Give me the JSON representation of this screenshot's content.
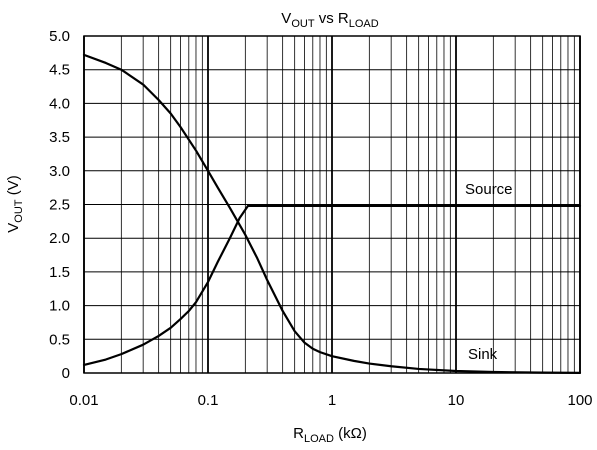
{
  "chart_data": {
    "type": "line",
    "title": {
      "main": "V",
      "main_sub": "OUT",
      "mid": " vs R",
      "mid_sub": "LOAD"
    },
    "xlabel": {
      "main": "R",
      "sub": "LOAD",
      "unit": " (kΩ)"
    },
    "ylabel": {
      "main": "V",
      "sub": "OUT",
      "unit": " (V)"
    },
    "x_scale": "log",
    "xlim": [
      0.01,
      100
    ],
    "ylim": [
      0,
      5
    ],
    "x_ticks": [
      {
        "value": 0.01,
        "label": "0.01"
      },
      {
        "value": 0.1,
        "label": "0.1"
      },
      {
        "value": 1,
        "label": "1"
      },
      {
        "value": 10,
        "label": "10"
      },
      {
        "value": 100,
        "label": "100"
      }
    ],
    "y_ticks": [
      {
        "value": 0,
        "label": "0"
      },
      {
        "value": 0.5,
        "label": "0.5"
      },
      {
        "value": 1.0,
        "label": "1.0"
      },
      {
        "value": 1.5,
        "label": "1.5"
      },
      {
        "value": 2.0,
        "label": "2.0"
      },
      {
        "value": 2.5,
        "label": "2.5"
      },
      {
        "value": 3.0,
        "label": "3.0"
      },
      {
        "value": 3.5,
        "label": "3.5"
      },
      {
        "value": 4.0,
        "label": "4.0"
      },
      {
        "value": 4.5,
        "label": "4.5"
      },
      {
        "value": 5.0,
        "label": "5.0"
      }
    ],
    "grid": true,
    "series": [
      {
        "name": "Source",
        "x": [
          0.01,
          0.015,
          0.02,
          0.03,
          0.04,
          0.05,
          0.06,
          0.07,
          0.08,
          0.1,
          0.12,
          0.15,
          0.18,
          0.21,
          0.22,
          0.3,
          0.5,
          1,
          2,
          5,
          10,
          20,
          50,
          100
        ],
        "y": [
          0.12,
          0.2,
          0.28,
          0.42,
          0.55,
          0.67,
          0.8,
          0.92,
          1.05,
          1.35,
          1.65,
          2.0,
          2.3,
          2.48,
          2.48,
          2.48,
          2.48,
          2.48,
          2.48,
          2.48,
          2.48,
          2.48,
          2.48,
          2.48
        ]
      },
      {
        "name": "Sink",
        "x": [
          0.01,
          0.015,
          0.02,
          0.03,
          0.04,
          0.05,
          0.06,
          0.08,
          0.1,
          0.12,
          0.15,
          0.2,
          0.25,
          0.3,
          0.4,
          0.5,
          0.6,
          0.7,
          0.8,
          1,
          1.5,
          2,
          3,
          5,
          10,
          20,
          50,
          100
        ],
        "y": [
          4.72,
          4.6,
          4.5,
          4.28,
          4.05,
          3.85,
          3.65,
          3.3,
          3.0,
          2.75,
          2.45,
          2.05,
          1.7,
          1.38,
          0.92,
          0.62,
          0.45,
          0.36,
          0.31,
          0.25,
          0.18,
          0.14,
          0.1,
          0.06,
          0.03,
          0.015,
          0.006,
          0.002
        ]
      }
    ]
  }
}
